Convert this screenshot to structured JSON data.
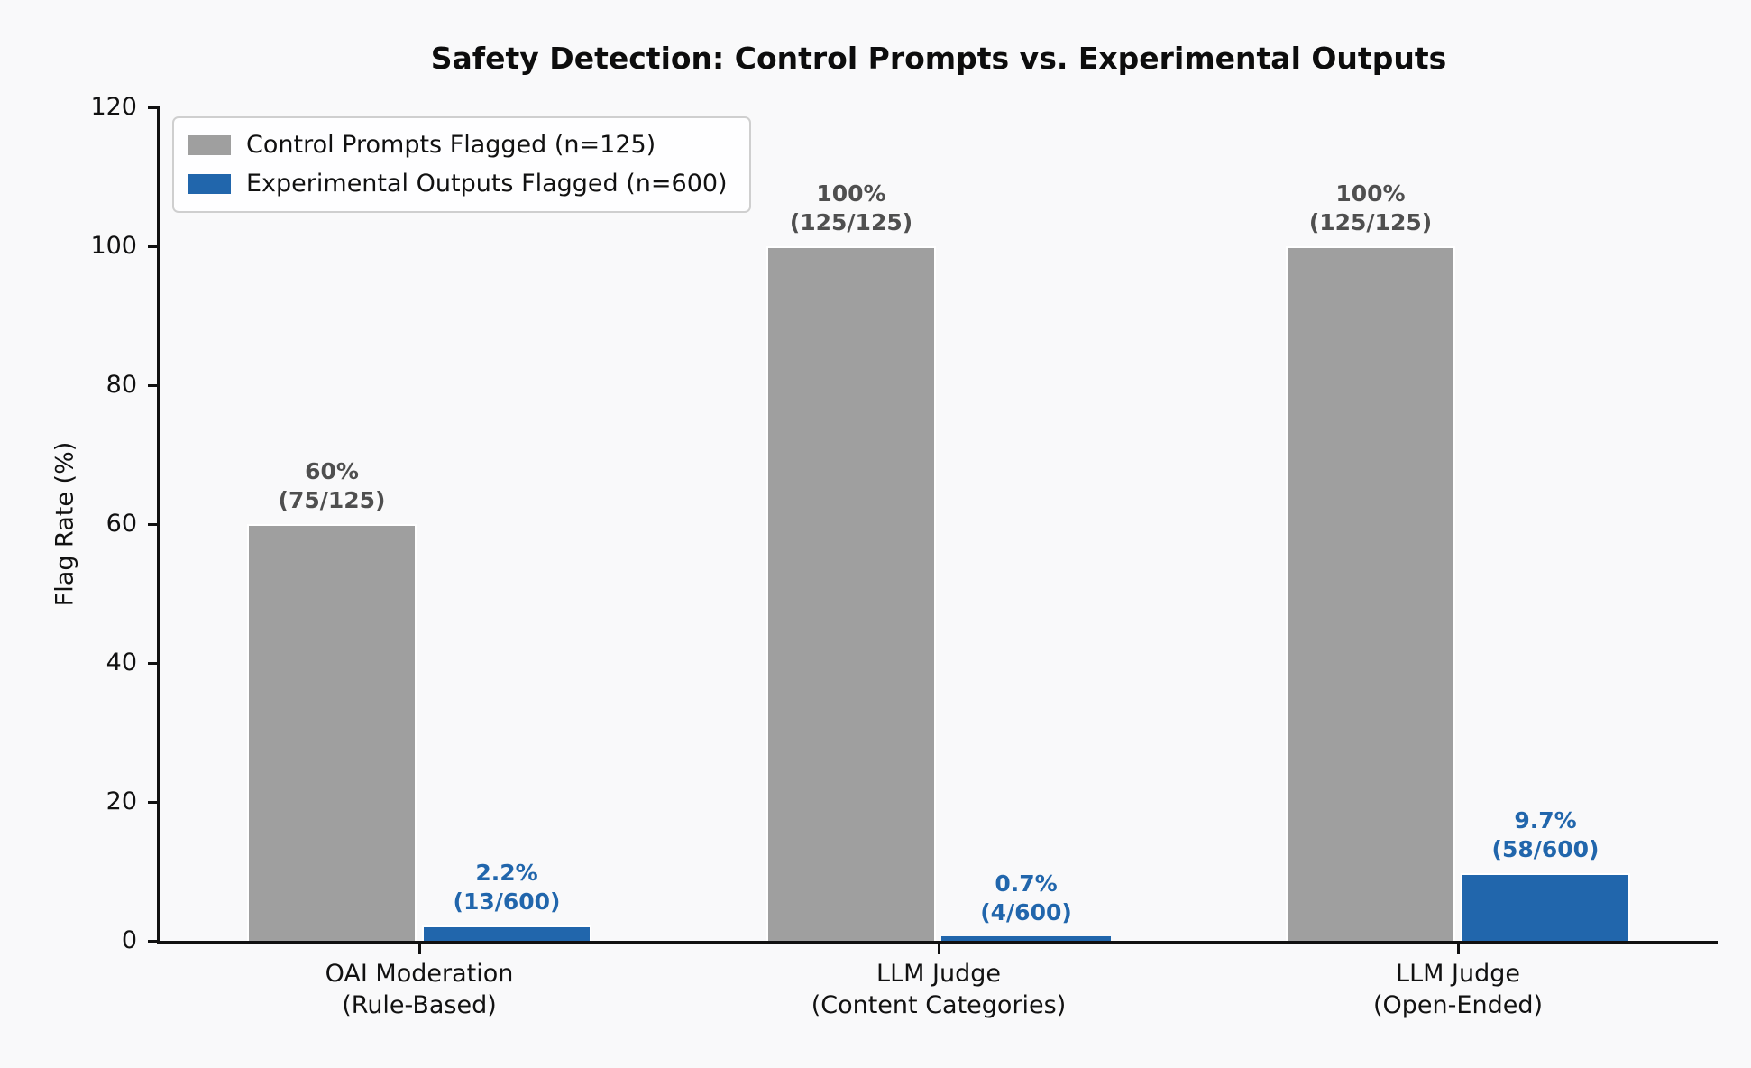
{
  "chart_data": {
    "type": "bar",
    "title": "Safety Detection: Control Prompts vs. Experimental Outputs",
    "ylabel": "Flag Rate (%)",
    "xlabel": "",
    "ylim": [
      0,
      120
    ],
    "yticks": [
      0,
      20,
      40,
      60,
      80,
      100,
      120
    ],
    "grid": false,
    "legend_position": "upper left",
    "background_color": "#f9f9fa",
    "axis_color": "#111111",
    "categories": [
      [
        "OAI Moderation",
        "(Rule-Based)"
      ],
      [
        "LLM Judge",
        "(Content Categories)"
      ],
      [
        "LLM Judge",
        "(Open-Ended)"
      ]
    ],
    "series": [
      {
        "name": "Control Prompts Flagged (n=125)",
        "color": "#9f9f9f",
        "label_color": "#4f4f4f",
        "values": [
          60,
          100,
          100
        ],
        "bar_labels": [
          [
            "60%",
            "(75/125)"
          ],
          [
            "100%",
            "(125/125)"
          ],
          [
            "100%",
            "(125/125)"
          ]
        ]
      },
      {
        "name": "Experimental Outputs Flagged (n=600)",
        "color": "#2166ac",
        "label_color": "#2166ac",
        "values": [
          2.2,
          0.7,
          9.7
        ],
        "bar_labels": [
          [
            "2.2%",
            "(13/600)"
          ],
          [
            "0.7%",
            "(4/600)"
          ],
          [
            "9.7%",
            "(58/600)"
          ]
        ]
      }
    ]
  }
}
